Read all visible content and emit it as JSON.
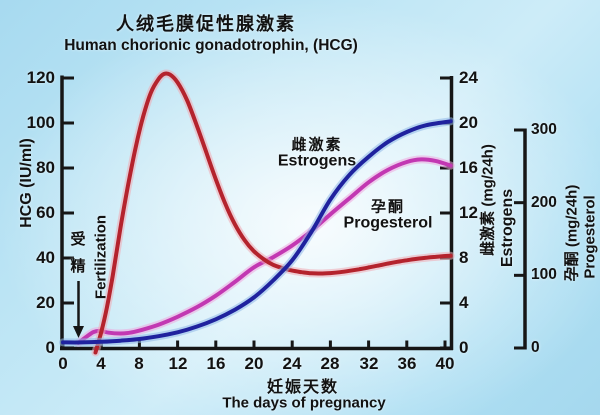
{
  "title": {
    "zh": "人绒毛膜促性腺激素",
    "en": "Human chorionic gonadotrophin, (HCG)"
  },
  "x_axis": {
    "label_zh": "妊娠天数",
    "label_en": "The days of pregnancy",
    "ticks": [
      0,
      4,
      8,
      12,
      16,
      20,
      24,
      28,
      32,
      36,
      40
    ],
    "range": [
      0,
      40
    ]
  },
  "left_axis": {
    "label": "HCG (IU/ml)",
    "ticks": [
      0,
      20,
      40,
      60,
      80,
      100,
      120
    ],
    "range": [
      0,
      120
    ]
  },
  "estrogen_axis": {
    "label_zh": "雌激素 (mg/24h)",
    "label_en": "Estrogens",
    "ticks": [
      0,
      4,
      8,
      12,
      16,
      20,
      24
    ],
    "range": [
      0,
      24
    ]
  },
  "progesterol_axis": {
    "label_zh": "孕酮 (mg/24h)",
    "label_en": "Progesterol",
    "ticks": [
      0,
      100,
      200,
      300
    ],
    "range": [
      0,
      300
    ]
  },
  "annotations": {
    "fertilization_zh": "受\n精",
    "fertilization_en": "Fertilization"
  },
  "curve_labels": {
    "estrogens_zh": "雌激素",
    "estrogens_en": "Estrogens",
    "progesterol_zh": "孕酮",
    "progesterol_en": "Progesterol"
  },
  "colors": {
    "axis": "#161616",
    "hcg_curve": "#b4232d",
    "hcg_halo": "#f0a9b2",
    "estrogen_curve": "#1f229e",
    "estrogen_halo": "#8fb8e8",
    "progesterol_curve": "#c238b2",
    "progesterol_halo": "#eeা8df"
  },
  "chart_data": {
    "type": "line",
    "title_zh": "人绒毛膜促性腺激素",
    "title_en": "Human chorionic gonadotrophin, (HCG)",
    "xlabel": "The days of pregnancy (妊娠天数)",
    "x_range": [
      0,
      40
    ],
    "grid": false,
    "legend_position": "inline-curve-labels",
    "axes": [
      {
        "id": "hcg",
        "side": "left",
        "label": "HCG (IU/ml)",
        "range": [
          0,
          120
        ],
        "ticks": [
          0,
          20,
          40,
          60,
          80,
          100,
          120
        ]
      },
      {
        "id": "estrogen",
        "side": "right-inner",
        "label": "雌激素 (mg/24h) Estrogens",
        "range": [
          0,
          24
        ],
        "ticks": [
          0,
          4,
          8,
          12,
          16,
          20,
          24
        ]
      },
      {
        "id": "progesterol",
        "side": "right-outer",
        "label": "孕酮 (mg/24h) Progesterol",
        "range": [
          0,
          300
        ],
        "ticks": [
          0,
          100,
          200,
          300
        ]
      }
    ],
    "series": [
      {
        "name": "HCG",
        "axis": "hcg",
        "color": "#b4232d",
        "halo": "#f0a9b2",
        "points": [
          [
            3.4,
            -2
          ],
          [
            4,
            7
          ],
          [
            4.6,
            18
          ],
          [
            5.2,
            32
          ],
          [
            6,
            53
          ],
          [
            6.8,
            72
          ],
          [
            7.6,
            89
          ],
          [
            8.4,
            103
          ],
          [
            9.2,
            113.5
          ],
          [
            10,
            119.5
          ],
          [
            10.6,
            121.8
          ],
          [
            11.2,
            121.5
          ],
          [
            12,
            118
          ],
          [
            13,
            110
          ],
          [
            14,
            99
          ],
          [
            15,
            87
          ],
          [
            16,
            75
          ],
          [
            17,
            64
          ],
          [
            18,
            55
          ],
          [
            19,
            48
          ],
          [
            20,
            43
          ],
          [
            21,
            39.5
          ],
          [
            22,
            37
          ],
          [
            23,
            35.5
          ],
          [
            24,
            34.4
          ],
          [
            25,
            33.7
          ],
          [
            26,
            33.2
          ],
          [
            27,
            33.1
          ],
          [
            28,
            33.3
          ],
          [
            29,
            33.7
          ],
          [
            30,
            34.3
          ],
          [
            31,
            35
          ],
          [
            32,
            35.8
          ],
          [
            33,
            36.6
          ],
          [
            34,
            37.5
          ],
          [
            35,
            38.3
          ],
          [
            36,
            39
          ],
          [
            37,
            39.6
          ],
          [
            38,
            40.1
          ],
          [
            39,
            40.5
          ],
          [
            40.6,
            41
          ]
        ]
      },
      {
        "name": "Estrogens",
        "axis": "estrogen",
        "color": "#1f229e",
        "halo": "#8fb8e8",
        "points": [
          [
            0,
            0.5
          ],
          [
            2,
            0.5
          ],
          [
            4,
            0.55
          ],
          [
            6,
            0.65
          ],
          [
            8,
            0.8
          ],
          [
            10,
            1.05
          ],
          [
            12,
            1.4
          ],
          [
            14,
            1.9
          ],
          [
            16,
            2.55
          ],
          [
            18,
            3.4
          ],
          [
            20,
            4.5
          ],
          [
            22,
            6
          ],
          [
            24,
            7.8
          ],
          [
            26,
            10.3
          ],
          [
            28,
            13.2
          ],
          [
            30,
            15.4
          ],
          [
            32,
            17
          ],
          [
            34,
            18.3
          ],
          [
            36,
            19.2
          ],
          [
            38,
            19.8
          ],
          [
            40.6,
            20.15
          ]
        ]
      },
      {
        "name": "Progesterol",
        "axis": "progesterol",
        "color": "#c238b2",
        "halo": "#eea8df",
        "points": [
          [
            1.6,
            7
          ],
          [
            2.4,
            15
          ],
          [
            3.2,
            22
          ],
          [
            3.9,
            23.5
          ],
          [
            4.8,
            21
          ],
          [
            6,
            20
          ],
          [
            7,
            21
          ],
          [
            8,
            24
          ],
          [
            10,
            32
          ],
          [
            12,
            43
          ],
          [
            14,
            56
          ],
          [
            16,
            72
          ],
          [
            18,
            91
          ],
          [
            20,
            111
          ],
          [
            22,
            125
          ],
          [
            24,
            141
          ],
          [
            26,
            161
          ],
          [
            28,
            184
          ],
          [
            30,
            206
          ],
          [
            32,
            228
          ],
          [
            34,
            245
          ],
          [
            36,
            256
          ],
          [
            37.5,
            259.5
          ],
          [
            39,
            257.5
          ],
          [
            40.6,
            251
          ]
        ]
      }
    ],
    "annotations": [
      {
        "text": "受精 Fertilization",
        "arrow_points_to_day": 1.6
      }
    ]
  }
}
